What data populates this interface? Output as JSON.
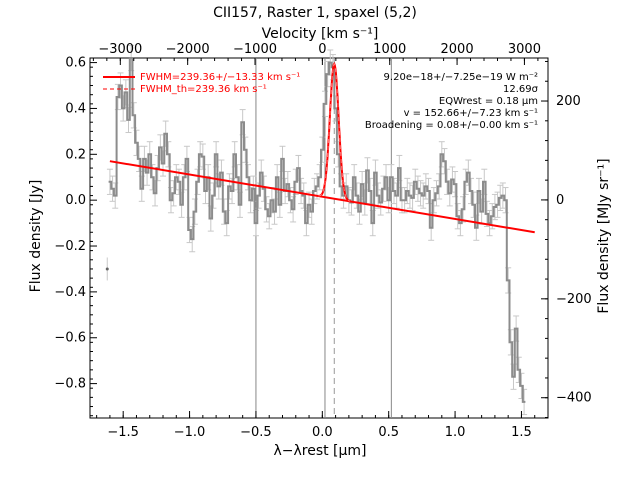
{
  "chart_data": {
    "type": "line",
    "title": "CII157, Raster 1, spaxel (5,2)",
    "xlabel": "λ−λrest [µm]",
    "ylabel": "Flux density [Jy]",
    "x2label": "Velocity [km s⁻¹]",
    "y2label": "Flux density [MJy sr⁻¹]",
    "xlim": [
      -1.75,
      1.7
    ],
    "ylim": [
      -0.95,
      0.62
    ],
    "x2lim": [
      -3450,
      3350
    ],
    "y2lim": [
      -441,
      287
    ],
    "xticks": [
      "−1.5",
      "−1.0",
      "−0.5",
      "0.0",
      "0.5",
      "1.0",
      "1.5"
    ],
    "yticks": [
      "−0.8",
      "−0.6",
      "−0.4",
      "−0.2",
      "0.0",
      "0.2",
      "0.4",
      "0.6"
    ],
    "x2ticks": [
      "−3000",
      "−2000",
      "−1000",
      "0",
      "1000",
      "2000",
      "3000"
    ],
    "y2ticks": [
      "−400",
      "−200",
      "0",
      "200"
    ],
    "legend": [
      {
        "label": "FWHM=239.36+/−13.33 km s⁻¹",
        "color": "#ff0000",
        "style": "solid"
      },
      {
        "label": "FWHM_th=239.36 km s⁻¹",
        "color": "#ff0000",
        "style": "dashed"
      }
    ],
    "annotations": [
      "9.20e−18+/−7.25e−19 W m⁻²",
      "12.69σ",
      "EQWrest = 0.18 µm",
      "v = 152.66+/−7.23 km s⁻¹",
      "Broadening = 0.08+/−0.00 km s⁻¹"
    ],
    "vertical_lines": [
      -0.5,
      0.02,
      0.52
    ],
    "line_center": 0.09,
    "continuum": {
      "x": [
        -1.6,
        1.6
      ],
      "y": [
        0.17,
        -0.14
      ]
    },
    "gaussian": {
      "center": 0.09,
      "amplitude": 0.588,
      "sigma": 0.033
    },
    "series": [
      {
        "name": "spectrum",
        "color": "#909090",
        "x": [
          -1.6,
          -1.58,
          -1.56,
          -1.54,
          -1.52,
          -1.5,
          -1.48,
          -1.46,
          -1.44,
          -1.42,
          -1.4,
          -1.38,
          -1.36,
          -1.34,
          -1.32,
          -1.3,
          -1.28,
          -1.26,
          -1.24,
          -1.22,
          -1.2,
          -1.18,
          -1.16,
          -1.14,
          -1.12,
          -1.1,
          -1.08,
          -1.06,
          -1.04,
          -1.02,
          -1.0,
          -0.98,
          -0.96,
          -0.94,
          -0.92,
          -0.9,
          -0.88,
          -0.86,
          -0.84,
          -0.82,
          -0.8,
          -0.78,
          -0.76,
          -0.74,
          -0.72,
          -0.7,
          -0.68,
          -0.66,
          -0.64,
          -0.62,
          -0.6,
          -0.58,
          -0.56,
          -0.54,
          -0.52,
          -0.5,
          -0.48,
          -0.46,
          -0.44,
          -0.42,
          -0.4,
          -0.38,
          -0.36,
          -0.34,
          -0.32,
          -0.3,
          -0.28,
          -0.26,
          -0.24,
          -0.22,
          -0.2,
          -0.18,
          -0.16,
          -0.14,
          -0.12,
          -0.1,
          -0.08,
          -0.06,
          -0.04,
          -0.02,
          0.0,
          0.02,
          0.04,
          0.06,
          0.08,
          0.1,
          0.12,
          0.14,
          0.16,
          0.18,
          0.2,
          0.22,
          0.24,
          0.26,
          0.28,
          0.3,
          0.32,
          0.34,
          0.36,
          0.38,
          0.4,
          0.42,
          0.44,
          0.46,
          0.48,
          0.5,
          0.52,
          0.54,
          0.56,
          0.58,
          0.6,
          0.62,
          0.64,
          0.66,
          0.68,
          0.7,
          0.72,
          0.74,
          0.76,
          0.78,
          0.8,
          0.82,
          0.84,
          0.86,
          0.88,
          0.9,
          0.92,
          0.94,
          0.96,
          0.98,
          1.0,
          1.02,
          1.04,
          1.06,
          1.08,
          1.1,
          1.12,
          1.14,
          1.16,
          1.18,
          1.2,
          1.22,
          1.24,
          1.26,
          1.28,
          1.3,
          1.32,
          1.34,
          1.36,
          1.38,
          1.4,
          1.42,
          1.44,
          1.46,
          1.48,
          1.5,
          1.52
        ],
        "y": [
          0.08,
          0.05,
          0.02,
          0.45,
          0.5,
          0.4,
          0.47,
          0.35,
          0.62,
          0.37,
          0.25,
          0.18,
          0.05,
          0.18,
          0.12,
          0.2,
          0.1,
          0.03,
          0.14,
          0.23,
          0.16,
          0.29,
          0.2,
          0.0,
          0.03,
          0.1,
          0.08,
          -0.02,
          0.1,
          0.18,
          -0.13,
          -0.17,
          -0.05,
          0.08,
          0.2,
          0.19,
          0.04,
          0.1,
          -0.08,
          0.02,
          0.2,
          0.06,
          0.12,
          -0.05,
          -0.1,
          0.06,
          0.04,
          0.2,
          0.1,
          -0.02,
          0.34,
          0.22,
          0.1,
          0.0,
          0.05,
          -0.1,
          0.02,
          0.12,
          0.05,
          -0.04,
          -0.07,
          0.0,
          -0.05,
          0.1,
          -0.02,
          0.18,
          0.04,
          0.07,
          0.0,
          -0.04,
          0.08,
          0.14,
          0.04,
          0.02,
          -0.1,
          -0.02,
          -0.05,
          0.04,
          0.06,
          0.1,
          0.22,
          0.42,
          0.55,
          0.6,
          0.58,
          0.4,
          0.2,
          0.06,
          0.02,
          0.06,
          0.0,
          -0.01,
          0.1,
          0.02,
          -0.05,
          0.07,
          -0.01,
          0.13,
          0.04,
          -0.1,
          0.12,
          0.02,
          -0.01,
          0.05,
          0.1,
          0.0,
          0.1,
          0.04,
          0.02,
          0.14,
          0.0,
          0.0,
          0.04,
          0.02,
          0.01,
          0.08,
          0.05,
          0.03,
          0.02,
          0.06,
          0.04,
          -0.12,
          0.0,
          0.03,
          0.06,
          0.2,
          0.17,
          0.08,
          0.03,
          0.09,
          0.07,
          -0.07,
          -0.1,
          -0.04,
          0.08,
          0.12,
          0.04,
          -0.02,
          -0.12,
          0.04,
          -0.05,
          0.08,
          -0.06,
          -0.1,
          -0.07,
          -0.03,
          -0.02,
          0.01,
          0.02,
          0.0,
          -0.35,
          -0.62,
          -0.77,
          -0.56,
          -0.74,
          -0.81,
          -0.88
        ]
      },
      {
        "name": "isolated point",
        "color": "#909090",
        "x": [
          -1.62
        ],
        "y": [
          -0.3
        ]
      }
    ],
    "grid": false
  }
}
